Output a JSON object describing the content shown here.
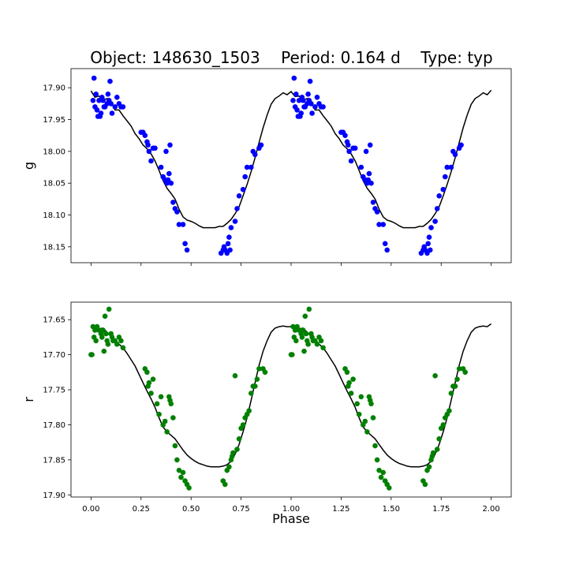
{
  "title": {
    "object": "Object: 148630_1503",
    "period": "Period: 0.164 d",
    "type": "Type: typ"
  },
  "colors": {
    "g_points": "#0000ff",
    "r_points": "#008000",
    "model_line": "#000000",
    "axes": "#000000"
  },
  "chart_data": [
    {
      "type": "scatter",
      "panel": "top",
      "ylabel": "g",
      "xlabel": "",
      "xlim": [
        -0.1,
        2.1
      ],
      "ylim": [
        18.175,
        17.87
      ],
      "y_inverted": true,
      "xticks": [
        0.0,
        0.25,
        0.5,
        0.75,
        1.0,
        1.25,
        1.5,
        1.75,
        2.0
      ],
      "xtick_labels": [],
      "yticks": [
        17.9,
        17.95,
        18.0,
        18.05,
        18.1,
        18.15
      ],
      "ytick_labels": [
        "17.90",
        "17.95",
        "18.00",
        "18.05",
        "18.10",
        "18.15"
      ],
      "point_color": "#0000ff",
      "points_x": [
        0.01,
        0.015,
        0.02,
        0.025,
        0.03,
        0.035,
        0.04,
        0.045,
        0.05,
        0.055,
        0.06,
        0.065,
        0.07,
        0.08,
        0.085,
        0.09,
        0.095,
        0.1,
        0.105,
        0.12,
        0.13,
        0.14,
        0.15,
        0.16,
        0.25,
        0.26,
        0.27,
        0.28,
        0.285,
        0.29,
        0.3,
        0.31,
        0.32,
        0.35,
        0.36,
        0.37,
        0.375,
        0.38,
        0.385,
        0.39,
        0.395,
        0.4,
        0.41,
        0.42,
        0.43,
        0.44,
        0.46,
        0.47,
        0.48,
        0.65,
        0.66,
        0.665,
        0.67,
        0.68,
        0.685,
        0.69,
        0.695,
        0.7,
        0.72,
        0.73,
        0.74,
        0.76,
        0.77,
        0.78,
        0.8,
        0.81,
        0.82,
        0.84,
        0.85
      ],
      "points_y": [
        17.92,
        17.885,
        17.93,
        17.91,
        17.935,
        17.945,
        17.92,
        17.945,
        17.94,
        17.915,
        17.92,
        17.93,
        17.93,
        17.925,
        17.91,
        17.92,
        17.89,
        17.925,
        17.94,
        17.93,
        17.915,
        17.925,
        17.93,
        17.93,
        17.97,
        17.97,
        17.975,
        17.985,
        17.99,
        18.0,
        18.015,
        17.995,
        17.995,
        18.025,
        18.04,
        18.045,
        18.0,
        18.05,
        18.045,
        18.035,
        17.99,
        18.05,
        18.08,
        18.09,
        18.095,
        18.115,
        18.115,
        18.145,
        18.155,
        18.16,
        18.155,
        18.15,
        18.155,
        18.16,
        18.145,
        18.135,
        18.155,
        18.12,
        18.11,
        18.09,
        18.07,
        18.06,
        18.04,
        18.025,
        18.025,
        18.0,
        18.005,
        17.995,
        17.99
      ],
      "model_x": [
        0.0,
        0.02,
        0.04,
        0.06,
        0.08,
        0.1,
        0.12,
        0.14,
        0.16,
        0.18,
        0.2,
        0.22,
        0.24,
        0.26,
        0.28,
        0.3,
        0.32,
        0.34,
        0.36,
        0.38,
        0.4,
        0.42,
        0.44,
        0.46,
        0.48,
        0.5,
        0.52,
        0.54,
        0.56,
        0.58,
        0.6,
        0.62,
        0.64,
        0.66,
        0.68,
        0.7,
        0.72,
        0.74,
        0.76,
        0.78,
        0.8,
        0.82,
        0.84,
        0.86,
        0.88,
        0.9,
        0.92,
        0.94,
        0.96,
        0.98,
        1.0,
        1.02,
        1.04,
        1.06,
        1.08,
        1.1,
        1.12,
        1.14,
        1.16,
        1.18,
        1.2,
        1.22,
        1.24,
        1.26,
        1.28,
        1.3,
        1.32,
        1.34,
        1.36,
        1.38,
        1.4,
        1.42,
        1.44,
        1.46,
        1.48,
        1.5,
        1.52,
        1.54,
        1.56,
        1.58,
        1.6,
        1.62,
        1.64,
        1.66,
        1.68,
        1.7,
        1.72,
        1.74,
        1.76,
        1.78,
        1.8,
        1.82,
        1.84,
        1.86,
        1.88,
        1.9,
        1.92,
        1.94,
        1.96,
        1.98,
        2.0
      ],
      "model_y": [
        17.905,
        17.915,
        17.913,
        17.92,
        17.917,
        17.922,
        17.935,
        17.935,
        17.944,
        17.952,
        17.96,
        17.972,
        17.98,
        17.99,
        17.996,
        18.004,
        18.015,
        18.03,
        18.046,
        18.058,
        18.066,
        18.075,
        18.091,
        18.103,
        18.108,
        18.11,
        18.113,
        18.117,
        18.12,
        18.12,
        18.12,
        18.12,
        18.118,
        18.118,
        18.113,
        18.107,
        18.098,
        18.087,
        18.07,
        18.052,
        18.032,
        18.01,
        17.986,
        17.963,
        17.943,
        17.926,
        17.917,
        17.913,
        17.908,
        17.911,
        17.906,
        17.914,
        17.913,
        17.92,
        17.917,
        17.921,
        17.935,
        17.935,
        17.944,
        17.952,
        17.96,
        17.972,
        17.98,
        17.99,
        17.996,
        18.004,
        18.015,
        18.03,
        18.046,
        18.058,
        18.066,
        18.075,
        18.091,
        18.103,
        18.108,
        18.11,
        18.113,
        18.117,
        18.12,
        18.12,
        18.12,
        18.12,
        18.118,
        18.118,
        18.113,
        18.107,
        18.098,
        18.087,
        18.07,
        18.052,
        18.032,
        18.01,
        17.986,
        17.963,
        17.943,
        17.926,
        17.917,
        17.913,
        17.908,
        17.911,
        17.904
      ]
    },
    {
      "type": "scatter",
      "panel": "bottom",
      "ylabel": "r",
      "xlabel": "Phase",
      "xlim": [
        -0.1,
        2.1
      ],
      "ylim": [
        17.903,
        17.625
      ],
      "y_inverted": true,
      "xticks": [
        0.0,
        0.25,
        0.5,
        0.75,
        1.0,
        1.25,
        1.5,
        1.75,
        2.0
      ],
      "xtick_labels": [
        "0.00",
        "0.25",
        "0.50",
        "0.75",
        "1.00",
        "1.25",
        "1.50",
        "1.75",
        "2.00"
      ],
      "yticks": [
        17.65,
        17.7,
        17.75,
        17.8,
        17.85,
        17.9
      ],
      "ytick_labels": [
        "17.65",
        "17.70",
        "17.75",
        "17.80",
        "17.85",
        "17.90"
      ],
      "point_color": "#008000",
      "points_x": [
        0.0,
        0.005,
        0.01,
        0.015,
        0.02,
        0.025,
        0.03,
        0.04,
        0.05,
        0.055,
        0.06,
        0.065,
        0.07,
        0.075,
        0.08,
        0.085,
        0.09,
        0.1,
        0.105,
        0.11,
        0.12,
        0.13,
        0.14,
        0.15,
        0.16,
        0.27,
        0.28,
        0.285,
        0.29,
        0.3,
        0.31,
        0.33,
        0.34,
        0.35,
        0.36,
        0.37,
        0.38,
        0.39,
        0.395,
        0.4,
        0.41,
        0.42,
        0.43,
        0.44,
        0.45,
        0.46,
        0.47,
        0.48,
        0.49,
        0.66,
        0.67,
        0.68,
        0.69,
        0.7,
        0.705,
        0.71,
        0.72,
        0.73,
        0.74,
        0.75,
        0.76,
        0.77,
        0.78,
        0.79,
        0.8,
        0.81,
        0.82,
        0.83,
        0.84,
        0.86,
        0.87
      ],
      "points_y": [
        17.7,
        17.7,
        17.66,
        17.675,
        17.665,
        17.68,
        17.66,
        17.665,
        17.67,
        17.675,
        17.665,
        17.695,
        17.645,
        17.67,
        17.68,
        17.685,
        17.635,
        17.67,
        17.675,
        17.68,
        17.68,
        17.685,
        17.675,
        17.68,
        17.69,
        17.72,
        17.725,
        17.745,
        17.74,
        17.755,
        17.735,
        17.77,
        17.785,
        17.76,
        17.8,
        17.795,
        17.81,
        17.76,
        17.765,
        17.77,
        17.79,
        17.83,
        17.85,
        17.865,
        17.875,
        17.868,
        17.88,
        17.885,
        17.89,
        17.88,
        17.885,
        17.865,
        17.86,
        17.85,
        17.845,
        17.84,
        17.73,
        17.835,
        17.82,
        17.805,
        17.8,
        17.79,
        17.785,
        17.78,
        17.755,
        17.745,
        17.745,
        17.735,
        17.72,
        17.72,
        17.725
      ],
      "model_x": [
        0.0,
        0.02,
        0.04,
        0.06,
        0.08,
        0.1,
        0.12,
        0.14,
        0.16,
        0.18,
        0.2,
        0.22,
        0.24,
        0.26,
        0.28,
        0.3,
        0.32,
        0.34,
        0.36,
        0.38,
        0.4,
        0.42,
        0.44,
        0.46,
        0.48,
        0.5,
        0.52,
        0.54,
        0.56,
        0.58,
        0.6,
        0.62,
        0.64,
        0.66,
        0.68,
        0.7,
        0.72,
        0.74,
        0.76,
        0.78,
        0.8,
        0.82,
        0.84,
        0.86,
        0.88,
        0.9,
        0.92,
        0.94,
        0.96,
        0.98,
        1.0,
        1.02,
        1.04,
        1.06,
        1.08,
        1.1,
        1.12,
        1.14,
        1.16,
        1.18,
        1.2,
        1.22,
        1.24,
        1.26,
        1.28,
        1.3,
        1.32,
        1.34,
        1.36,
        1.38,
        1.4,
        1.42,
        1.44,
        1.46,
        1.48,
        1.5,
        1.52,
        1.54,
        1.56,
        1.58,
        1.6,
        1.62,
        1.64,
        1.66,
        1.68,
        1.7,
        1.72,
        1.74,
        1.76,
        1.78,
        1.8,
        1.82,
        1.84,
        1.86,
        1.88,
        1.9,
        1.92,
        1.94,
        1.96,
        1.98,
        2.0
      ],
      "model_y": [
        17.66,
        17.66,
        17.663,
        17.662,
        17.668,
        17.674,
        17.68,
        17.685,
        17.69,
        17.698,
        17.707,
        17.716,
        17.728,
        17.74,
        17.752,
        17.763,
        17.775,
        17.79,
        17.803,
        17.81,
        17.815,
        17.82,
        17.828,
        17.836,
        17.843,
        17.848,
        17.852,
        17.855,
        17.857,
        17.859,
        17.86,
        17.86,
        17.86,
        17.859,
        17.857,
        17.852,
        17.842,
        17.828,
        17.81,
        17.79,
        17.765,
        17.74,
        17.715,
        17.695,
        17.68,
        17.668,
        17.662,
        17.66,
        17.659,
        17.66,
        17.66,
        17.66,
        17.663,
        17.662,
        17.668,
        17.674,
        17.68,
        17.685,
        17.69,
        17.698,
        17.707,
        17.716,
        17.728,
        17.74,
        17.752,
        17.763,
        17.775,
        17.79,
        17.803,
        17.81,
        17.815,
        17.82,
        17.828,
        17.836,
        17.843,
        17.848,
        17.852,
        17.855,
        17.857,
        17.859,
        17.86,
        17.86,
        17.86,
        17.859,
        17.857,
        17.852,
        17.842,
        17.828,
        17.81,
        17.79,
        17.765,
        17.74,
        17.715,
        17.695,
        17.68,
        17.668,
        17.662,
        17.66,
        17.659,
        17.66,
        17.656
      ]
    }
  ]
}
